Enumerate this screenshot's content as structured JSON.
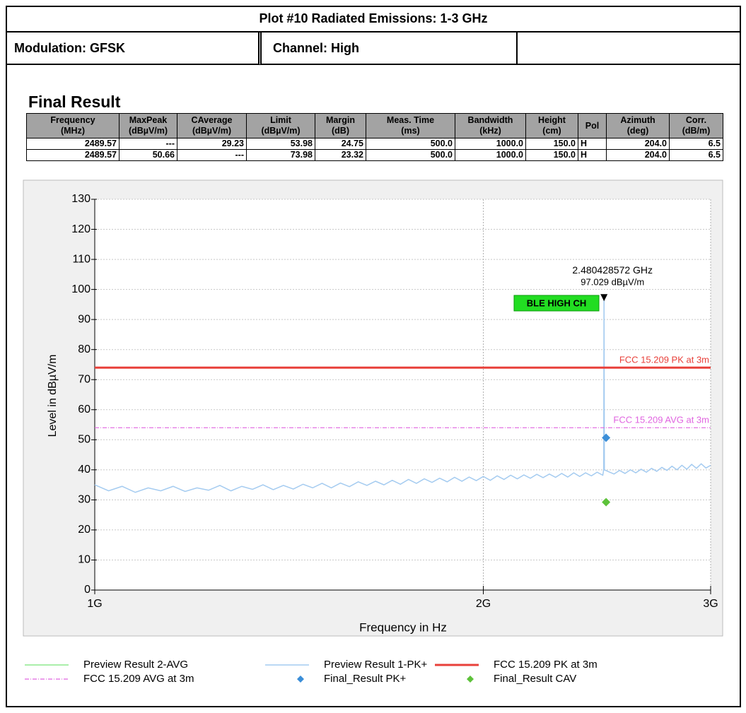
{
  "header": {
    "title": "Plot #10 Radiated Emissions: 1-3 GHz",
    "modulation": "Modulation: GFSK",
    "channel": "Channel: High"
  },
  "table": {
    "title": "Final Result",
    "columns": [
      {
        "name": "Frequency",
        "unit": "(MHz)"
      },
      {
        "name": "MaxPeak",
        "unit": "(dBµV/m)"
      },
      {
        "name": "CAverage",
        "unit": "(dBµV/m)"
      },
      {
        "name": "Limit",
        "unit": "(dBµV/m)"
      },
      {
        "name": "Margin",
        "unit": "(dB)"
      },
      {
        "name": "Meas. Time",
        "unit": "(ms)"
      },
      {
        "name": "Bandwidth",
        "unit": "(kHz)"
      },
      {
        "name": "Height",
        "unit": "(cm)"
      },
      {
        "name": "Pol"
      },
      {
        "name": "Azimuth",
        "unit": "(deg)"
      },
      {
        "name": "Corr.",
        "unit": "(dB/m)"
      }
    ],
    "rows": [
      [
        "2489.57",
        "---",
        "29.23",
        "53.98",
        "24.75",
        "500.0",
        "1000.0",
        "150.0",
        "H",
        "204.0",
        "6.5"
      ],
      [
        "2489.57",
        "50.66",
        "---",
        "73.98",
        "23.32",
        "500.0",
        "1000.0",
        "150.0",
        "H",
        "204.0",
        "6.5"
      ]
    ]
  },
  "chart_data": {
    "type": "line",
    "xlabel": "Frequency in Hz",
    "ylabel": "Level in dBµV/m",
    "xscale": "log",
    "xlim": [
      1000000000.0,
      3000000000.0
    ],
    "xticks": [
      {
        "value": 1000000000.0,
        "label": "1G"
      },
      {
        "value": 2000000000.0,
        "label": "2G"
      },
      {
        "value": 3000000000.0,
        "label": "3G"
      }
    ],
    "ylim": [
      0,
      130
    ],
    "yticks": [
      0,
      10,
      20,
      30,
      40,
      50,
      60,
      70,
      80,
      90,
      100,
      110,
      120,
      130
    ],
    "grid": true,
    "series": [
      {
        "name": "Preview Result 2-AVG",
        "color": "#8ee88e",
        "style": "line",
        "x": [],
        "values": []
      },
      {
        "name": "Preview Result 1-PK+",
        "color": "#a4cbf0",
        "style": "line",
        "x": [
          1000000000.0,
          1025000000.0,
          1050000000.0,
          1075000000.0,
          1100000000.0,
          1125000000.0,
          1150000000.0,
          1175000000.0,
          1200000000.0,
          1225000000.0,
          1250000000.0,
          1275000000.0,
          1300000000.0,
          1325000000.0,
          1350000000.0,
          1375000000.0,
          1400000000.0,
          1425000000.0,
          1450000000.0,
          1475000000.0,
          1500000000.0,
          1525000000.0,
          1550000000.0,
          1575000000.0,
          1600000000.0,
          1625000000.0,
          1650000000.0,
          1675000000.0,
          1700000000.0,
          1725000000.0,
          1750000000.0,
          1775000000.0,
          1800000000.0,
          1825000000.0,
          1850000000.0,
          1875000000.0,
          1900000000.0,
          1925000000.0,
          1950000000.0,
          1975000000.0,
          2000000000.0,
          2025000000.0,
          2050000000.0,
          2075000000.0,
          2100000000.0,
          2125000000.0,
          2150000000.0,
          2175000000.0,
          2200000000.0,
          2225000000.0,
          2250000000.0,
          2275000000.0,
          2300000000.0,
          2325000000.0,
          2350000000.0,
          2375000000.0,
          2400000000.0,
          2425000000.0,
          2450000000.0,
          2475000000.0,
          2479000000.0,
          2480428572,
          2482000000.0,
          2500000000.0,
          2525000000.0,
          2550000000.0,
          2575000000.0,
          2600000000.0,
          2625000000.0,
          2650000000.0,
          2675000000.0,
          2700000000.0,
          2725000000.0,
          2750000000.0,
          2775000000.0,
          2800000000.0,
          2825000000.0,
          2850000000.0,
          2875000000.0,
          2900000000.0,
          2925000000.0,
          2950000000.0,
          2975000000.0,
          3000000000.0
        ],
        "values": [
          35,
          33,
          34.5,
          32.5,
          34,
          33,
          34.5,
          32.8,
          34,
          33.2,
          34.8,
          33,
          34.5,
          33.5,
          35,
          33.4,
          34.8,
          33.6,
          35.2,
          34,
          35.5,
          34,
          35.6,
          34.4,
          36,
          34.8,
          36.2,
          35,
          36.5,
          35.2,
          36.8,
          35.5,
          37,
          35.8,
          37.2,
          36,
          37.5,
          36.2,
          37.6,
          36.4,
          37.8,
          36.5,
          38,
          36.8,
          38.2,
          37,
          38.3,
          37.2,
          38.5,
          37.4,
          38.6,
          37.5,
          38.8,
          37.6,
          39,
          37.8,
          39,
          38,
          39.2,
          38.2,
          40,
          97.029,
          40,
          39.4,
          38.6,
          39.8,
          38.8,
          40,
          39,
          40.2,
          39.2,
          40.5,
          39.5,
          40.8,
          39.8,
          41.2,
          40,
          41.5,
          40.2,
          41.8,
          40.5,
          42,
          40.6,
          41.5
        ]
      },
      {
        "name": "FCC 15.209 PK at 3m",
        "color": "#e8403a",
        "style": "limit",
        "x": [
          1000000000.0,
          3000000000.0
        ],
        "values": [
          74,
          74
        ]
      },
      {
        "name": "FCC 15.209 AVG at 3m",
        "color": "#e065e0",
        "style": "dashdot",
        "x": [
          1000000000.0,
          3000000000.0
        ],
        "values": [
          54,
          54
        ]
      },
      {
        "name": "Final_Result PK+",
        "color": "#3b8ed8",
        "style": "diamond",
        "x": [
          2489570000
        ],
        "values": [
          50.66
        ]
      },
      {
        "name": "Final_Result CAV",
        "color": "#5dc23a",
        "style": "diamond",
        "x": [
          2489570000
        ],
        "values": [
          29.23
        ]
      }
    ],
    "marker": {
      "x": 2480428572,
      "value": 97.029,
      "labels": [
        "2.480428572 GHz",
        "97.029 dBµV/m"
      ]
    },
    "annotation": "BLE HIGH CH"
  }
}
